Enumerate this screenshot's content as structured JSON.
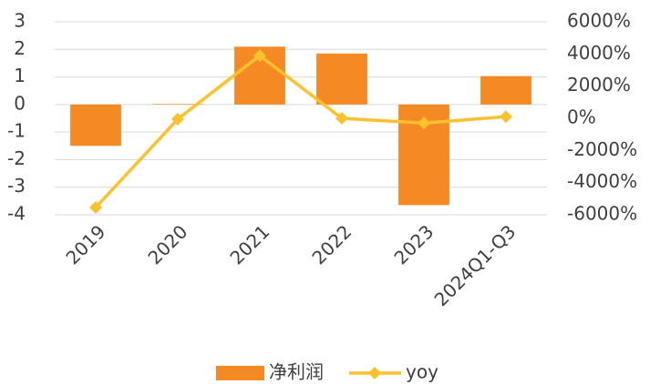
{
  "chart_data": {
    "type": "bar_line",
    "categories": [
      "2019",
      "2020",
      "2021",
      "2022",
      "2023",
      "2024Q1-Q3"
    ],
    "series": [
      {
        "name": "净利润",
        "type": "bar",
        "color": "#f58a24",
        "values": [
          -1.5,
          0.02,
          2.1,
          1.85,
          -3.65,
          1.03
        ]
      },
      {
        "name": "yoy",
        "type": "line",
        "axis": "y2",
        "color": "#fcc12d",
        "values": [
          -5550,
          -50,
          3900,
          0,
          -300,
          100
        ]
      }
    ],
    "ylim": [
      -4,
      3
    ],
    "yticks": [
      -4,
      -3,
      -2,
      -1,
      0,
      1,
      2,
      3
    ],
    "y2lim": [
      -6000,
      6000
    ],
    "y2ticks": [
      {
        "value": -6000,
        "label": "-6000%"
      },
      {
        "value": -4000,
        "label": "-4000%"
      },
      {
        "value": -2000,
        "label": "-2000%"
      },
      {
        "value": 0,
        "label": "0%"
      },
      {
        "value": 2000,
        "label": "2000%"
      },
      {
        "value": 4000,
        "label": "4000%"
      },
      {
        "value": 6000,
        "label": "6000%"
      }
    ],
    "grid": true,
    "legend": "bottom"
  }
}
